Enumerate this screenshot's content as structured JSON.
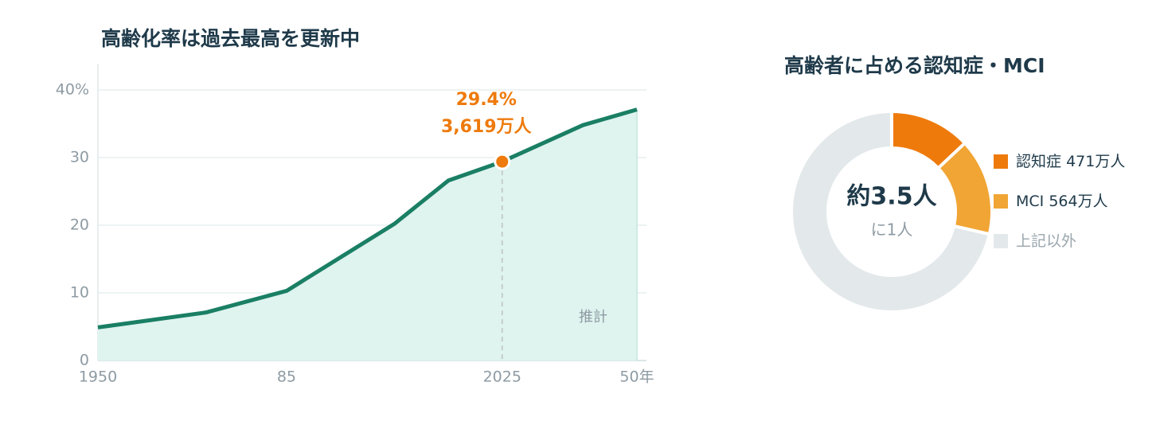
{
  "chart_data": [
    {
      "type": "line",
      "title": "高齢化率は過去最高を更新中",
      "x": [
        1950,
        1970,
        1985,
        2005,
        2015,
        2025,
        2040,
        2050
      ],
      "values": [
        4.9,
        7.1,
        10.3,
        20.2,
        26.6,
        29.4,
        34.8,
        37.1
      ],
      "color": "#1a7f64",
      "area_color": "#dff3ef",
      "xlim": [
        1950,
        2050
      ],
      "ylim": [
        0,
        40
      ],
      "xticks": [
        1950,
        {
          "value": 1985,
          "label": "85"
        },
        2025,
        {
          "value": 2050,
          "label": "50年"
        }
      ],
      "yticks": [
        0,
        10,
        20,
        30,
        {
          "value": 40,
          "label": "40%"
        }
      ],
      "grid": true,
      "annotation": {
        "x": 2025,
        "lines": [
          "29.4%",
          "3,619万人"
        ],
        "color": "#ee7a0c"
      },
      "note": "推計"
    },
    {
      "type": "donut",
      "title": "高齢者に占める認知症・MCI",
      "categories": [
        "認知症",
        "MCI",
        "上記以外"
      ],
      "values": [
        471,
        564,
        2584
      ],
      "value_labels": [
        "471万人",
        "564万人",
        null
      ],
      "colors": [
        "#ee7a0c",
        "#f0a534",
        "#e3e8eb"
      ],
      "center_label": "約3.5人",
      "center_sublabel": "に1人"
    }
  ]
}
